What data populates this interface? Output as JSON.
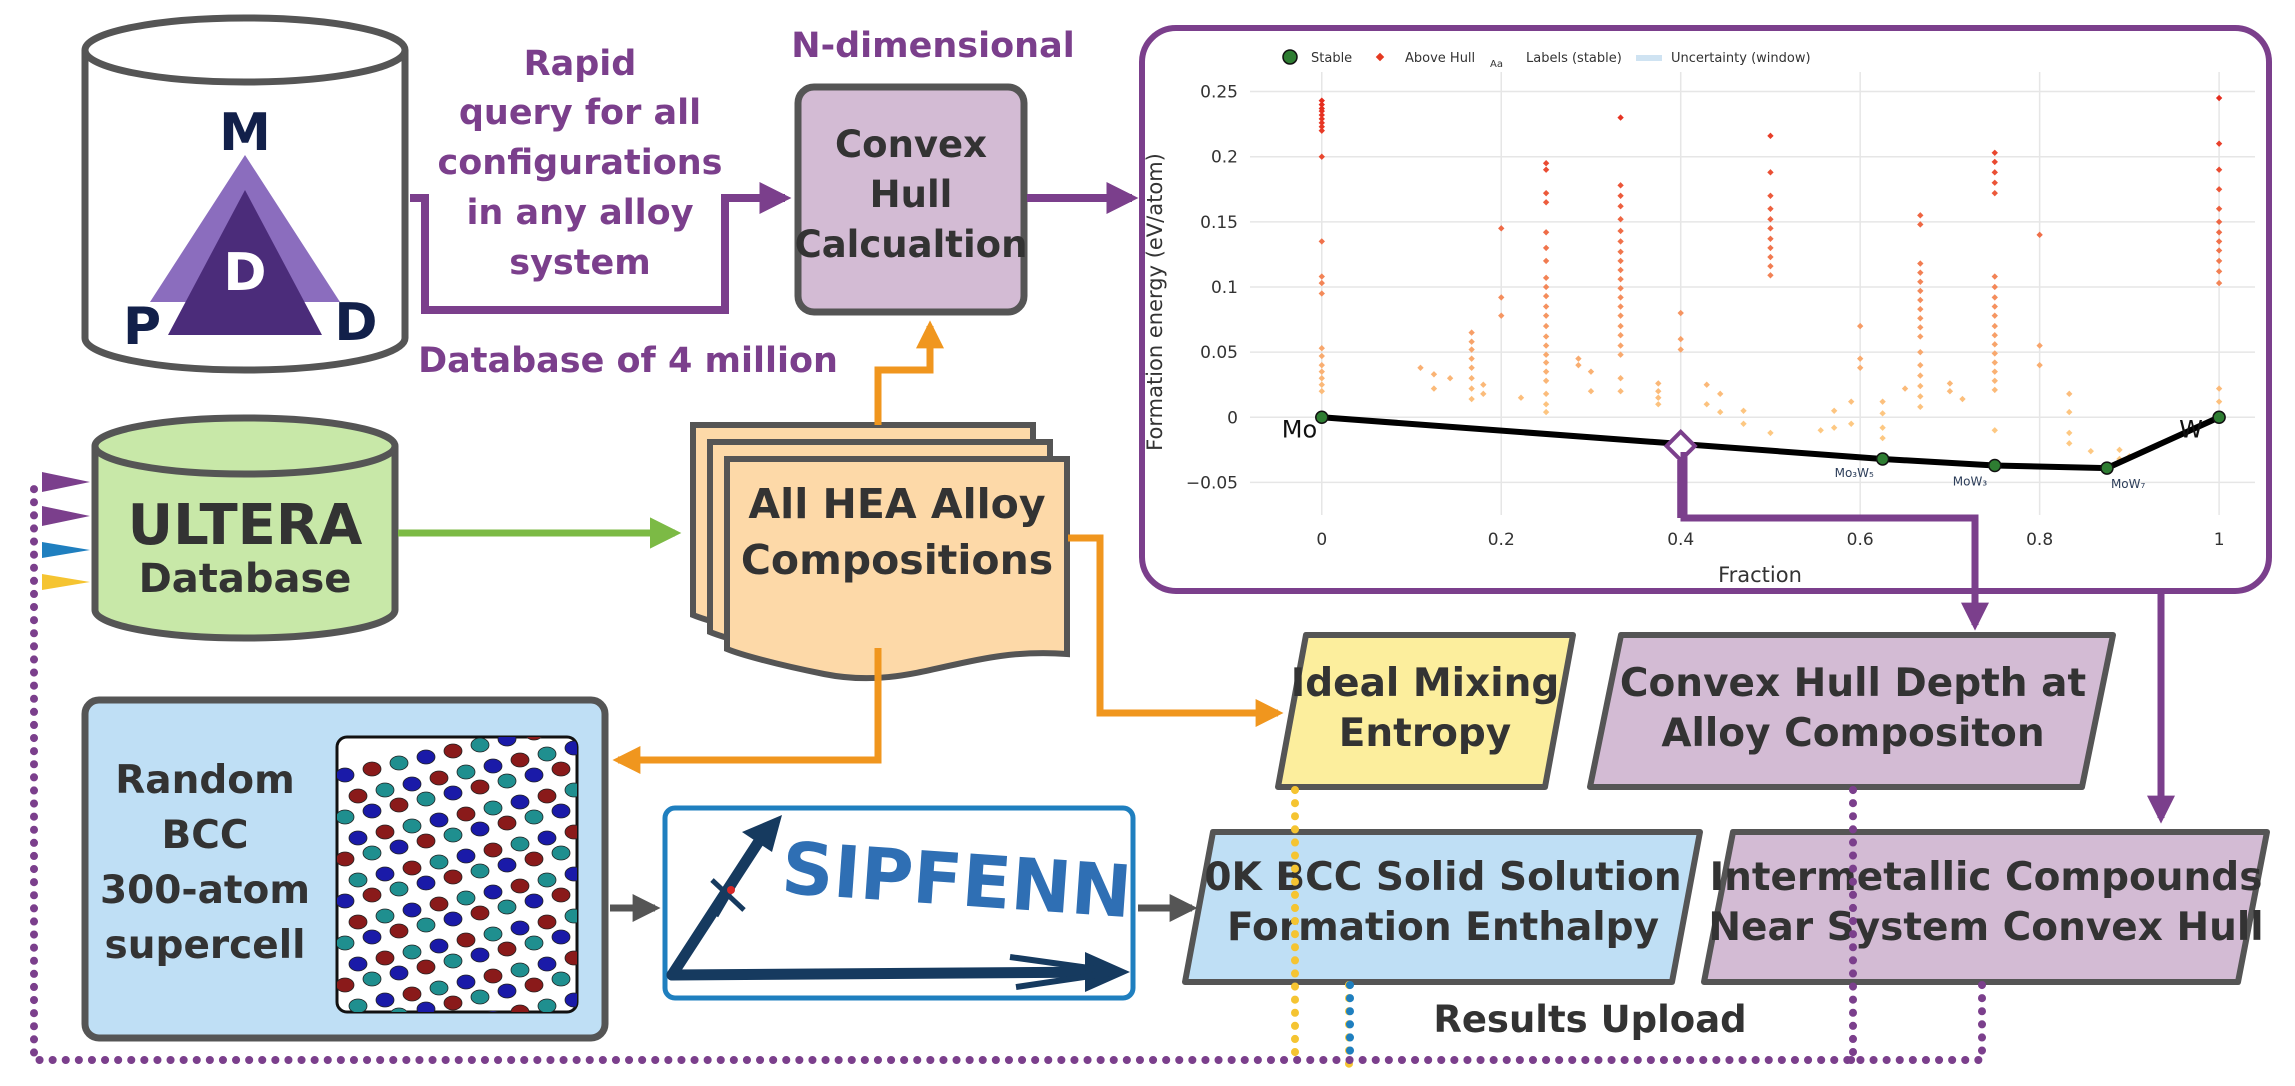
{
  "colors": {
    "purple": "#7b3f8c",
    "orange": "#f0961e",
    "green": "#7cba45",
    "blue": "#1f7fbf",
    "yellow": "#f5c431",
    "gray": "#555555",
    "box_purple": "#d3bbd4",
    "box_orange": "#fdd9a8",
    "box_yellow": "#fcee9d",
    "box_blue": "#bfdff5",
    "box_green": "#c8e8a8",
    "sipfenn_navy": "#163a5f",
    "sipfenn_blue": "#2f6fb4",
    "hull_stable": "#2e7d32",
    "hull_above": "#e53920"
  },
  "mpdd": {
    "letter_m": "M",
    "letter_p": "P",
    "letter_d_center": "D",
    "letter_d_right": "D"
  },
  "labels": {
    "rapid_query": [
      "Rapid",
      "query for all",
      "configurations",
      "in any alloy",
      "system"
    ],
    "n_dimensional": "N-dimensional",
    "database_4m": "Database of 4 million",
    "results_upload": "Results Upload"
  },
  "boxes": {
    "convex_hull_calc": [
      "Convex",
      "Hull",
      "Calcualtion"
    ],
    "ultera_title": "ULTERA",
    "ultera_sub": "Database",
    "hea_compositions": [
      "All HEA Alloy",
      "Compositions"
    ],
    "ideal_mixing": [
      "Ideal Mixing",
      "Entropy"
    ],
    "hull_depth": [
      "Convex Hull Depth at",
      "Alloy Compositon"
    ],
    "random_bcc": [
      "Random",
      "BCC",
      "300-atom",
      "supercell"
    ],
    "sipfenn": "SIPFENN",
    "formation_enthalpy": [
      "0K BCC Solid Solution",
      "Formation Enthalpy"
    ],
    "intermetallic": [
      "Intermetallic Compounds",
      "Near System Convex Hull"
    ]
  },
  "chart_data": {
    "type": "scatter",
    "xlabel": "Fraction",
    "ylabel": "Formation energy (eV/atom)",
    "xlim": [
      -0.08,
      1.04
    ],
    "ylim": [
      -0.075,
      0.265
    ],
    "xticks": [
      0,
      0.2,
      0.4,
      0.6,
      0.8,
      1
    ],
    "xtick_labels": [
      "0",
      "0.2",
      "0.4",
      "0.6",
      "0.8",
      "1"
    ],
    "yticks": [
      -0.05,
      0,
      0.05,
      0.1,
      0.15,
      0.2,
      0.25
    ],
    "ytick_labels": [
      "−0.05",
      "0",
      "0.05",
      "0.1",
      "0.15",
      "0.2",
      "0.25"
    ],
    "grid": true,
    "legend": {
      "position": "top-left",
      "stable": "Stable",
      "above_hull": "Above Hull",
      "labels_icon": "Aa",
      "labels": "Labels (stable)",
      "uncertainty": "Uncertainty (window)"
    },
    "hull_points": [
      {
        "x": 0,
        "y": 0
      },
      {
        "x": 0.625,
        "y": -0.032
      },
      {
        "x": 0.75,
        "y": -0.037
      },
      {
        "x": 0.875,
        "y": -0.039
      },
      {
        "x": 1,
        "y": 0
      }
    ],
    "hull_labels": [
      {
        "text": "Mo",
        "x": 0,
        "y": 0
      },
      {
        "text": "W",
        "x": 1,
        "y": 0
      },
      {
        "text": "Mo₃W₅",
        "x": 0.625,
        "y": -0.032
      },
      {
        "text": "MoW₃",
        "x": 0.75,
        "y": -0.037
      },
      {
        "text": "MoW₇",
        "x": 0.875,
        "y": -0.039
      }
    ],
    "query_point": {
      "x": 0.4,
      "y": -0.022
    },
    "above_hull_groups": [
      {
        "x": 0,
        "values": [
          0.243,
          0.24,
          0.237,
          0.235,
          0.232,
          0.229,
          0.226,
          0.223,
          0.22,
          0.2,
          0.135,
          0.108,
          0.103,
          0.095,
          0.053,
          0.047,
          0.04,
          0.035,
          0.03,
          0.025,
          0.02
        ]
      },
      {
        "x": 0.11,
        "values": [
          0.038
        ]
      },
      {
        "x": 0.125,
        "values": [
          0.033,
          0.022
        ]
      },
      {
        "x": 0.143,
        "values": [
          0.03
        ]
      },
      {
        "x": 0.167,
        "values": [
          0.065,
          0.058,
          0.052,
          0.045,
          0.038,
          0.03,
          0.022,
          0.014
        ]
      },
      {
        "x": 0.18,
        "values": [
          0.025,
          0.018
        ]
      },
      {
        "x": 0.2,
        "values": [
          0.145,
          0.092,
          0.078
        ]
      },
      {
        "x": 0.222,
        "values": [
          0.015
        ]
      },
      {
        "x": 0.25,
        "values": [
          0.195,
          0.19,
          0.172,
          0.165,
          0.142,
          0.13,
          0.12,
          0.107,
          0.1,
          0.093,
          0.085,
          0.078,
          0.07,
          0.062,
          0.055,
          0.048,
          0.042,
          0.035,
          0.028,
          0.018,
          0.01,
          0.004
        ]
      },
      {
        "x": 0.286,
        "values": [
          0.045,
          0.04
        ]
      },
      {
        "x": 0.3,
        "values": [
          0.035,
          0.02
        ]
      },
      {
        "x": 0.333,
        "values": [
          0.23,
          0.178,
          0.17,
          0.162,
          0.152,
          0.143,
          0.135,
          0.127,
          0.12,
          0.113,
          0.106,
          0.099,
          0.092,
          0.085,
          0.078,
          0.07,
          0.063,
          0.055,
          0.048,
          0.03,
          0.02
        ]
      },
      {
        "x": 0.375,
        "values": [
          0.026,
          0.02,
          0.015,
          0.01
        ]
      },
      {
        "x": 0.4,
        "values": [
          0.08,
          0.06,
          0.052
        ]
      },
      {
        "x": 0.429,
        "values": [
          0.025,
          0.01
        ]
      },
      {
        "x": 0.444,
        "values": [
          0.018,
          0.004
        ]
      },
      {
        "x": 0.47,
        "values": [
          0.005,
          -0.005
        ]
      },
      {
        "x": 0.5,
        "values": [
          0.216,
          0.188,
          0.17,
          0.16,
          0.152,
          0.145,
          0.137,
          0.13,
          0.123,
          0.116,
          0.109,
          -0.012
        ]
      },
      {
        "x": 0.556,
        "values": [
          -0.01
        ]
      },
      {
        "x": 0.571,
        "values": [
          0.005,
          -0.008
        ]
      },
      {
        "x": 0.59,
        "values": [
          0.012,
          -0.005
        ]
      },
      {
        "x": 0.6,
        "values": [
          0.07,
          0.045,
          0.038
        ]
      },
      {
        "x": 0.625,
        "values": [
          0.012,
          0.003,
          -0.008,
          -0.016
        ]
      },
      {
        "x": 0.65,
        "values": [
          0.022
        ]
      },
      {
        "x": 0.667,
        "values": [
          0.155,
          0.148,
          0.118,
          0.111,
          0.104,
          0.097,
          0.09,
          0.083,
          0.076,
          0.069,
          0.062,
          0.05,
          0.04,
          0.032,
          0.024,
          0.016,
          0.008
        ]
      },
      {
        "x": 0.7,
        "values": [
          0.026,
          0.02
        ]
      },
      {
        "x": 0.714,
        "values": [
          0.014
        ]
      },
      {
        "x": 0.75,
        "values": [
          0.203,
          0.196,
          0.188,
          0.18,
          0.172,
          0.108,
          0.1,
          0.092,
          0.085,
          0.078,
          0.07,
          0.063,
          0.056,
          0.049,
          0.042,
          0.035,
          0.028,
          0.021,
          -0.01
        ]
      },
      {
        "x": 0.8,
        "values": [
          0.14,
          0.055,
          0.04
        ]
      },
      {
        "x": 0.833,
        "values": [
          0.018,
          0.004,
          -0.012,
          -0.02
        ]
      },
      {
        "x": 0.857,
        "values": [
          -0.026
        ]
      },
      {
        "x": 0.889,
        "values": [
          -0.025,
          -0.032
        ]
      },
      {
        "x": 0.9,
        "values": [
          -0.03
        ]
      },
      {
        "x": 1,
        "values": [
          0.245,
          0.21,
          0.19,
          0.175,
          0.16,
          0.15,
          0.142,
          0.135,
          0.128,
          0.12,
          0.112,
          0.103,
          0.022,
          0.012
        ]
      }
    ]
  }
}
